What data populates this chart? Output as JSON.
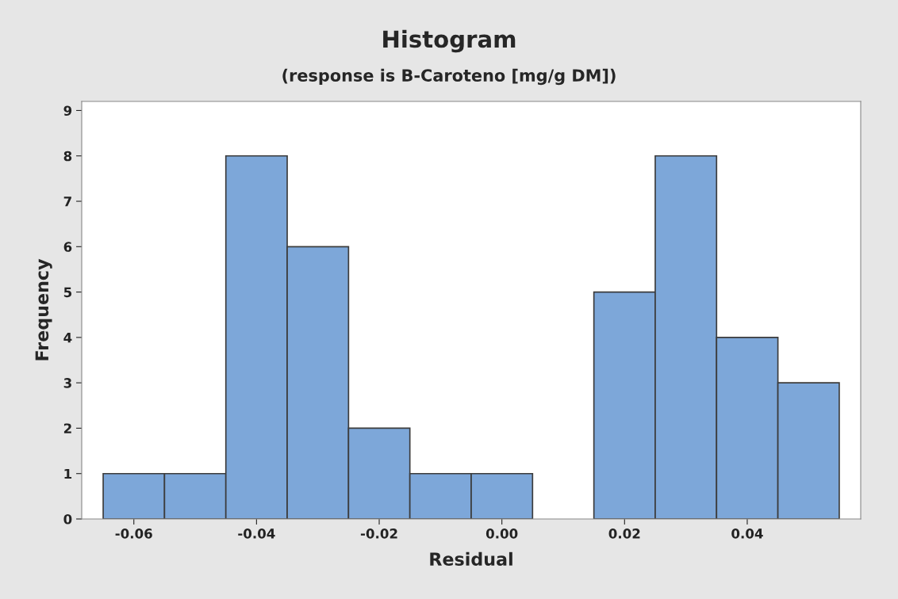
{
  "chart_data": {
    "type": "histogram",
    "title": "Histogram",
    "subtitle": "(response is B-Caroteno [mg/g DM])",
    "xlabel": "Residual",
    "ylabel": "Frequency",
    "bins": [
      -0.065,
      -0.055,
      -0.045,
      -0.035,
      -0.025,
      -0.015,
      -0.005,
      0.005,
      0.015,
      0.025,
      0.035,
      0.045,
      0.055
    ],
    "values": [
      1,
      1,
      8,
      6,
      2,
      1,
      1,
      0,
      5,
      8,
      4,
      3
    ],
    "color": "#7da7d9",
    "xlim": [
      -0.0685,
      0.0585
    ],
    "xticks": [
      {
        "value": -0.06,
        "label": "-0.06"
      },
      {
        "value": -0.04,
        "label": "-0.04"
      },
      {
        "value": -0.02,
        "label": "-0.02"
      },
      {
        "value": 0.0,
        "label": "0.00"
      },
      {
        "value": 0.02,
        "label": "0.02"
      },
      {
        "value": 0.04,
        "label": "0.04"
      }
    ],
    "ylim": [
      0,
      9.2
    ],
    "yticks": [
      0,
      1,
      2,
      3,
      4,
      5,
      6,
      7,
      8,
      9
    ]
  }
}
